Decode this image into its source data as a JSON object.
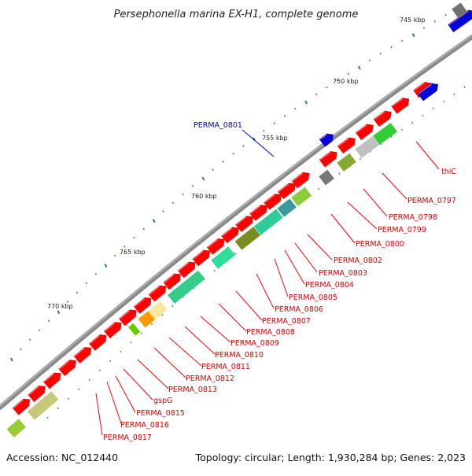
{
  "title": "Persephonella marina EX-H1, complete genome",
  "footer": {
    "accession": "Accession: NC_012440",
    "summary": "Topology: circular; Length: 1,930,284 bp; Genes: 2,023"
  },
  "colors": {
    "backbone": "#8a8a8a",
    "leader_red": "#ff0000",
    "leader_blue": "#0000cc",
    "gene_red": "#ff0000",
    "gene_blue": "#0000dd",
    "gene_grey": "#707070",
    "tick": "#2e8b2e"
  },
  "tick_labels": [
    "745 kbp",
    "750 kbp",
    "755 kbp",
    "760 kbp",
    "765 kbp",
    "770 kbp"
  ],
  "gene_labels": [
    {
      "text": "PERMA_0801",
      "color": "#0000cc"
    },
    {
      "text": "thiC",
      "color": "#dd0000"
    },
    {
      "text": "PERMA_0797",
      "color": "#dd0000"
    },
    {
      "text": "PERMA_0798",
      "color": "#dd0000"
    },
    {
      "text": "PERMA_0799",
      "color": "#dd0000"
    },
    {
      "text": "PERMA_0800",
      "color": "#dd0000"
    },
    {
      "text": "PERMA_0802",
      "color": "#dd0000"
    },
    {
      "text": "PERMA_0803",
      "color": "#dd0000"
    },
    {
      "text": "PERMA_0804",
      "color": "#dd0000"
    },
    {
      "text": "PERMA_0805",
      "color": "#dd0000"
    },
    {
      "text": "PERMA_0806",
      "color": "#dd0000"
    },
    {
      "text": "PERMA_0807",
      "color": "#dd0000"
    },
    {
      "text": "PERMA_0808",
      "color": "#dd0000"
    },
    {
      "text": "PERMA_0809",
      "color": "#dd0000"
    },
    {
      "text": "PERMA_0810",
      "color": "#dd0000"
    },
    {
      "text": "PERMA_0811",
      "color": "#dd0000"
    },
    {
      "text": "PERMA_0812",
      "color": "#dd0000"
    },
    {
      "text": "PERMA_0813",
      "color": "#dd0000"
    },
    {
      "text": "gspG",
      "color": "#dd0000"
    },
    {
      "text": "PERMA_0815",
      "color": "#dd0000"
    },
    {
      "text": "PERMA_0816",
      "color": "#dd0000"
    },
    {
      "text": "PERMA_0817",
      "color": "#dd0000"
    }
  ]
}
